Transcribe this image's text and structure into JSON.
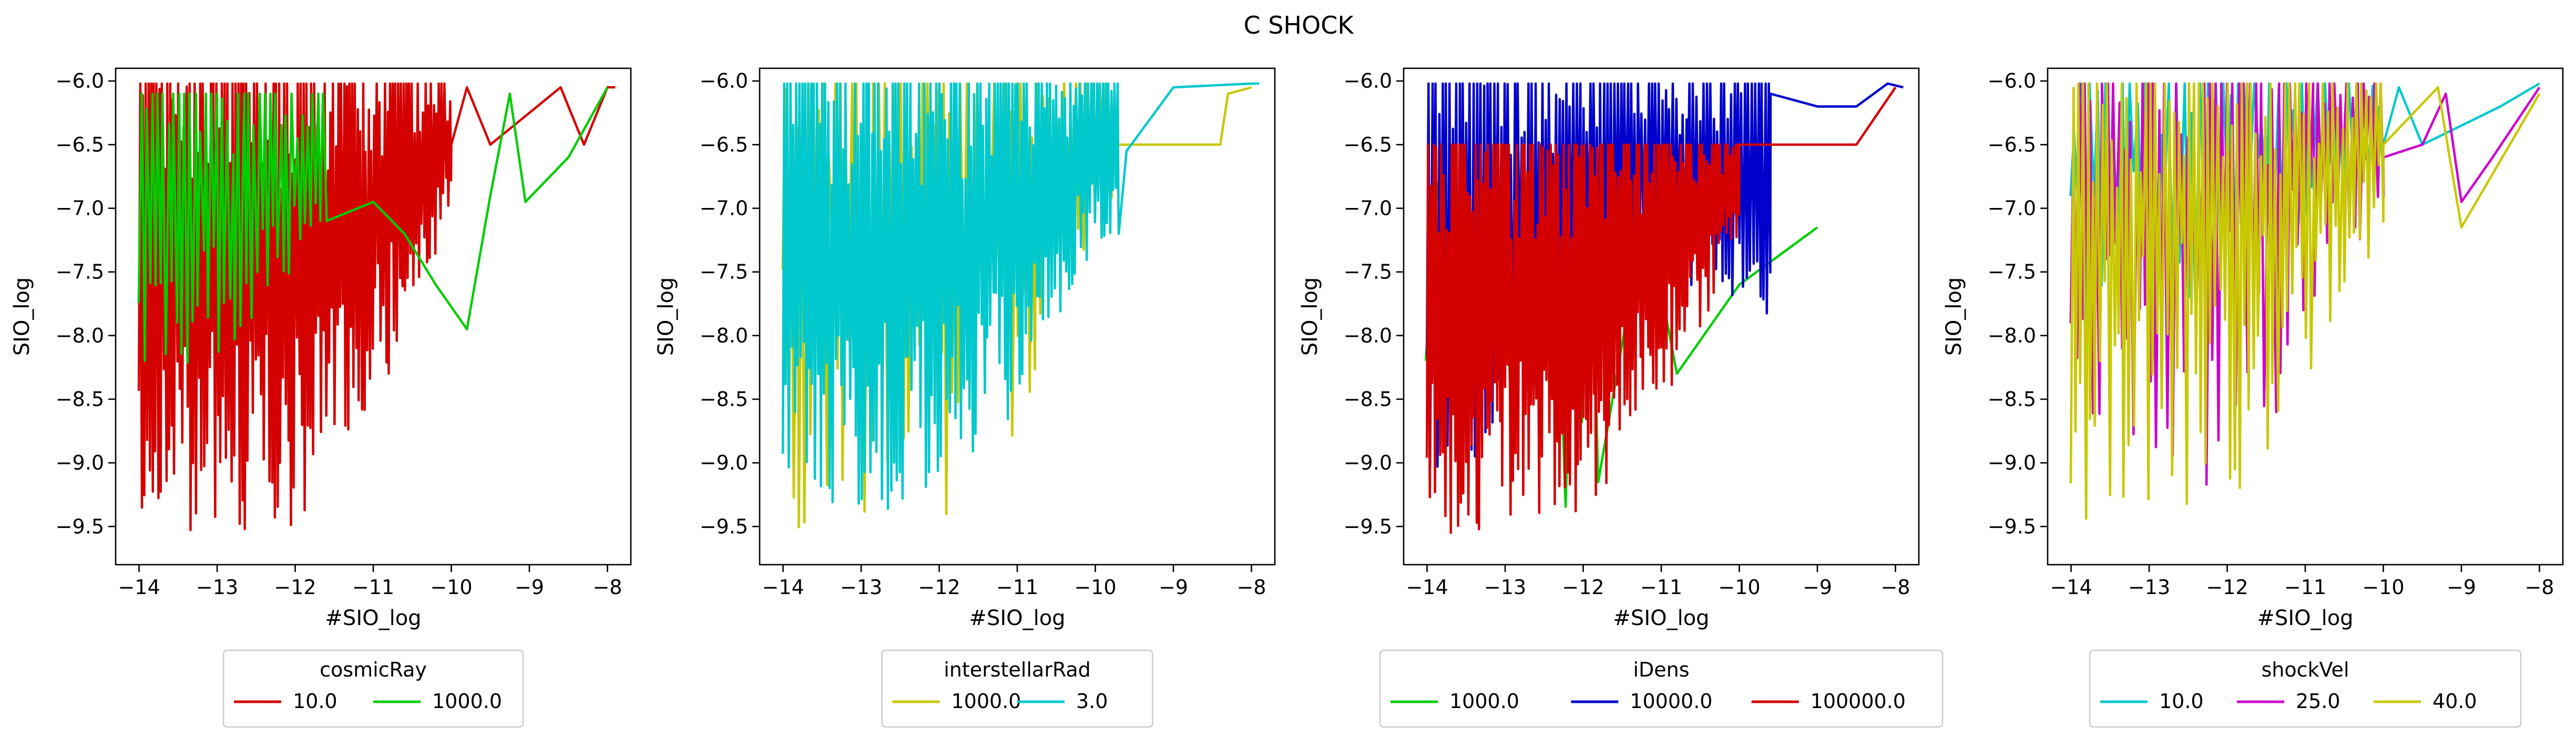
{
  "suptitle": "C SHOCK",
  "colors": {
    "red": "#d40000",
    "green": "#00cc00",
    "yellow": "#c8c800",
    "cyan": "#00c8cc",
    "blue": "#0000cc",
    "magenta": "#cc00cc",
    "axis": "#000000",
    "legend_border": "#cccccc"
  },
  "chart_data": [
    {
      "type": "line",
      "xlabel": "#SIO_log",
      "ylabel": "SIO_log",
      "xlim": [
        -14.3,
        -7.7
      ],
      "ylim": [
        -9.8,
        -5.9
      ],
      "xticks": [
        -14,
        -13,
        -12,
        -11,
        -10,
        -9,
        -8
      ],
      "yticks": [
        -9.5,
        -9.0,
        -8.5,
        -8.0,
        -7.5,
        -7.0,
        -6.5,
        -6.0
      ],
      "xtick_labels": [
        "−14",
        "−13",
        "−12",
        "−11",
        "−10",
        "−9",
        "−8"
      ],
      "ytick_labels": [
        "−9.5",
        "−9.0",
        "−8.5",
        "−8.0",
        "−7.5",
        "−7.0",
        "−6.5",
        "−6.0"
      ],
      "grid": false,
      "legend": {
        "title": "cosmicRay",
        "position": "below"
      },
      "series": [
        {
          "name": "10.0",
          "color": "#d40000",
          "pattern": "fill",
          "x_start": -14.0,
          "x_end": -10.0,
          "low": [
            [
              -14.0,
              -9.6
            ],
            [
              -12.0,
              -9.5
            ],
            [
              -11.0,
              -8.6
            ],
            [
              -10.0,
              -7.2
            ]
          ],
          "high": -6.02,
          "spikes": 230,
          "seed": 11,
          "tail": [
            [
              -10.0,
              -6.5
            ],
            [
              -9.8,
              -6.05
            ],
            [
              -9.5,
              -6.5
            ],
            [
              -8.6,
              -6.05
            ],
            [
              -8.3,
              -6.5
            ],
            [
              -8.0,
              -6.05
            ],
            [
              -7.9,
              -6.05
            ]
          ]
        },
        {
          "name": "1000.0",
          "color": "#00cc00",
          "pattern": "fill",
          "x_start": -14.0,
          "x_end": -11.6,
          "low": [
            [
              -14.0,
              -8.4
            ],
            [
              -13.0,
              -8.2
            ],
            [
              -12.0,
              -7.6
            ],
            [
              -11.6,
              -7.2
            ]
          ],
          "high": -6.1,
          "spikes": 70,
          "seed": 23,
          "tail": [
            [
              -11.6,
              -7.1
            ],
            [
              -11.0,
              -6.95
            ],
            [
              -10.6,
              -7.2
            ],
            [
              -10.2,
              -7.6
            ],
            [
              -9.8,
              -7.95
            ],
            [
              -9.5,
              -6.9
            ],
            [
              -9.25,
              -6.1
            ],
            [
              -9.05,
              -6.95
            ],
            [
              -8.5,
              -6.6
            ],
            [
              -8.0,
              -6.05
            ]
          ]
        }
      ]
    },
    {
      "type": "line",
      "xlabel": "#SIO_log",
      "ylabel": "SIO_log",
      "xlim": [
        -14.3,
        -7.7
      ],
      "ylim": [
        -9.8,
        -5.9
      ],
      "xticks": [
        -14,
        -13,
        -12,
        -11,
        -10,
        -9,
        -8
      ],
      "yticks": [
        -9.5,
        -9.0,
        -8.5,
        -8.0,
        -7.5,
        -7.0,
        -6.5,
        -6.0
      ],
      "xtick_labels": [
        "−14",
        "−13",
        "−12",
        "−11",
        "−10",
        "−9",
        "−8"
      ],
      "ytick_labels": [
        "−9.5",
        "−9.0",
        "−8.5",
        "−8.0",
        "−7.5",
        "−7.0",
        "−6.5",
        "−6.0"
      ],
      "grid": false,
      "legend": {
        "title": "interstellarRad",
        "position": "below"
      },
      "series": [
        {
          "name": "1000.0",
          "color": "#c8c800",
          "pattern": "spikes",
          "x_start": -14.0,
          "x_end": -9.8,
          "low": [
            [
              -14.0,
              -9.6
            ],
            [
              -12.0,
              -9.5
            ],
            [
              -11.0,
              -8.8
            ],
            [
              -10.0,
              -7.4
            ]
          ],
          "high": -6.02,
          "spikes": 120,
          "seed": 31,
          "tail": [
            [
              -9.8,
              -6.5
            ],
            [
              -8.4,
              -6.5
            ],
            [
              -8.3,
              -6.1
            ],
            [
              -8.0,
              -6.05
            ]
          ]
        },
        {
          "name": "3.0",
          "color": "#00c8cc",
          "pattern": "fill",
          "x_start": -14.0,
          "x_end": -9.7,
          "low": [
            [
              -14.0,
              -9.5
            ],
            [
              -12.0,
              -9.3
            ],
            [
              -11.0,
              -8.6
            ],
            [
              -10.0,
              -7.3
            ]
          ],
          "high": -6.02,
          "spikes": 230,
          "seed": 37,
          "tail": [
            [
              -9.7,
              -7.2
            ],
            [
              -9.6,
              -6.55
            ],
            [
              -9.0,
              -6.05
            ],
            [
              -8.0,
              -6.02
            ],
            [
              -7.9,
              -6.02
            ]
          ]
        }
      ]
    },
    {
      "type": "line",
      "xlabel": "#SIO_log",
      "ylabel": "SIO_log",
      "xlim": [
        -14.3,
        -7.7
      ],
      "ylim": [
        -9.8,
        -5.9
      ],
      "xticks": [
        -14,
        -13,
        -12,
        -11,
        -10,
        -9,
        -8
      ],
      "yticks": [
        -9.5,
        -9.0,
        -8.5,
        -8.0,
        -7.5,
        -7.0,
        -6.5,
        -6.0
      ],
      "xtick_labels": [
        "−14",
        "−13",
        "−12",
        "−11",
        "−10",
        "−9",
        "−8"
      ],
      "ytick_labels": [
        "−9.5",
        "−9.0",
        "−8.5",
        "−8.0",
        "−7.5",
        "−7.0",
        "−6.5",
        "−6.0"
      ],
      "grid": false,
      "legend": {
        "title": "iDens",
        "position": "below"
      },
      "series": [
        {
          "name": "1000.0",
          "color": "#00cc00",
          "pattern": "spikes",
          "x_start": -14.0,
          "x_end": -11.8,
          "low": [
            [
              -14.0,
              -8.2
            ],
            [
              -12.3,
              -9.6
            ],
            [
              -11.8,
              -9.4
            ]
          ],
          "high": -6.8,
          "spikes": 20,
          "seed": 41,
          "tail": [
            [
              -11.2,
              -7.0
            ],
            [
              -10.8,
              -8.3
            ],
            [
              -10.0,
              -7.6
            ],
            [
              -9.0,
              -7.15
            ]
          ]
        },
        {
          "name": "10000.0",
          "color": "#0000cc",
          "pattern": "fill",
          "x_start": -14.0,
          "x_end": -9.6,
          "low": [
            [
              -14.0,
              -9.4
            ],
            [
              -12.0,
              -8.0
            ],
            [
              -10.5,
              -7.6
            ],
            [
              -9.8,
              -7.9
            ]
          ],
          "high": -6.02,
          "spikes": 200,
          "seed": 43,
          "tail": [
            [
              -9.6,
              -6.1
            ],
            [
              -9.0,
              -6.2
            ],
            [
              -8.5,
              -6.2
            ],
            [
              -8.1,
              -6.02
            ],
            [
              -7.9,
              -6.05
            ]
          ]
        },
        {
          "name": "100000.0",
          "color": "#d40000",
          "pattern": "fill",
          "x_start": -14.0,
          "x_end": -10.0,
          "low": [
            [
              -14.0,
              -9.6
            ],
            [
              -12.0,
              -9.5
            ],
            [
              -11.0,
              -8.6
            ],
            [
              -10.0,
              -7.3
            ]
          ],
          "high": -6.5,
          "spikes": 240,
          "seed": 47,
          "tail": [
            [
              -10.0,
              -6.5
            ],
            [
              -9.0,
              -6.5
            ],
            [
              -8.5,
              -6.5
            ],
            [
              -8.0,
              -6.05
            ]
          ]
        }
      ]
    },
    {
      "type": "line",
      "xlabel": "#SIO_log",
      "ylabel": "SIO_log",
      "xlim": [
        -14.3,
        -7.7
      ],
      "ylim": [
        -9.8,
        -5.9
      ],
      "xticks": [
        -14,
        -13,
        -12,
        -11,
        -10,
        -9,
        -8
      ],
      "yticks": [
        -9.5,
        -9.0,
        -8.5,
        -8.0,
        -7.5,
        -7.0,
        -6.5,
        -6.0
      ],
      "xtick_labels": [
        "−14",
        "−13",
        "−12",
        "−11",
        "−10",
        "−9",
        "−8"
      ],
      "ytick_labels": [
        "−9.5",
        "−9.0",
        "−8.5",
        "−8.0",
        "−7.5",
        "−7.0",
        "−6.5",
        "−6.0"
      ],
      "grid": false,
      "legend": {
        "title": "shockVel",
        "position": "below"
      },
      "series": [
        {
          "name": "10.0",
          "color": "#00c8cc",
          "pattern": "spikes",
          "x_start": -14.0,
          "x_end": -10.0,
          "low": [
            [
              -14.0,
              -8.2
            ],
            [
              -12.0,
              -7.6
            ],
            [
              -10.0,
              -6.8
            ]
          ],
          "high": -6.02,
          "spikes": 80,
          "seed": 53,
          "tail": [
            [
              -10.0,
              -6.5
            ],
            [
              -9.8,
              -6.05
            ],
            [
              -9.5,
              -6.5
            ],
            [
              -8.5,
              -6.2
            ],
            [
              -8.0,
              -6.02
            ]
          ]
        },
        {
          "name": "25.0",
          "color": "#cc00cc",
          "pattern": "spikes",
          "x_start": -14.0,
          "x_end": -10.0,
          "low": [
            [
              -14.0,
              -8.5
            ],
            [
              -12.2,
              -9.6
            ],
            [
              -11.0,
              -8.2
            ],
            [
              -10.0,
              -7.2
            ]
          ],
          "high": -6.02,
          "spikes": 110,
          "seed": 59,
          "tail": [
            [
              -10.0,
              -6.6
            ],
            [
              -9.5,
              -6.5
            ],
            [
              -9.2,
              -6.1
            ],
            [
              -9.0,
              -6.95
            ],
            [
              -8.6,
              -6.6
            ],
            [
              -8.0,
              -6.05
            ]
          ]
        },
        {
          "name": "40.0",
          "color": "#c8c800",
          "pattern": "spikes",
          "x_start": -14.0,
          "x_end": -10.0,
          "low": [
            [
              -14.0,
              -9.6
            ],
            [
              -12.0,
              -9.5
            ],
            [
              -11.0,
              -8.6
            ],
            [
              -10.0,
              -7.2
            ]
          ],
          "high": -6.02,
          "spikes": 130,
          "seed": 61,
          "tail": [
            [
              -10.0,
              -6.5
            ],
            [
              -9.3,
              -6.05
            ],
            [
              -9.0,
              -7.15
            ],
            [
              -8.0,
              -6.1
            ]
          ]
        }
      ]
    }
  ]
}
